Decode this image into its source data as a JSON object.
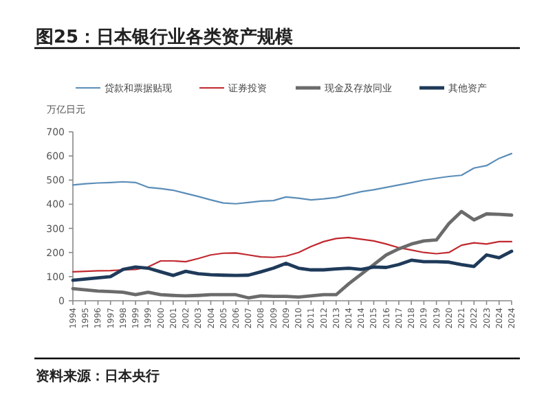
{
  "chart_data": {
    "type": "line",
    "title": "图25：日本银行业各类资产规模",
    "ylabel": "万亿日元",
    "categories": [
      "1994",
      "1995",
      "1996",
      "1997",
      "1998",
      "1999",
      "1999",
      "2000",
      "2001",
      "2002",
      "2003",
      "2004",
      "2005",
      "2006",
      "2007",
      "2008",
      "2009",
      "2009",
      "2010",
      "2011",
      "2012",
      "2013",
      "2014",
      "2014",
      "2015",
      "2016",
      "2017",
      "2018",
      "2019",
      "2019",
      "2020",
      "2021",
      "2022",
      "2023",
      "2024",
      "2024"
    ],
    "series": [
      {
        "name": "贷款和票据贴现",
        "color": "#5b8db8",
        "values": [
          480,
          485,
          488,
          490,
          493,
          490,
          470,
          465,
          458,
          445,
          432,
          418,
          405,
          402,
          407,
          413,
          415,
          430,
          425,
          418,
          422,
          428,
          440,
          452,
          460,
          470,
          480,
          490,
          500,
          508,
          515,
          520,
          550,
          560,
          590,
          610
        ]
      },
      {
        "name": "证券投资",
        "color": "#c0282e",
        "values": [
          120,
          122,
          124,
          125,
          128,
          130,
          140,
          165,
          165,
          162,
          175,
          190,
          197,
          198,
          190,
          182,
          180,
          185,
          200,
          225,
          245,
          258,
          262,
          255,
          248,
          235,
          220,
          210,
          200,
          195,
          200,
          230,
          240,
          235,
          245,
          245
        ]
      },
      {
        "name": "现金及存放同业",
        "color": "#6b6b6b",
        "values": [
          50,
          45,
          40,
          38,
          35,
          25,
          35,
          25,
          22,
          20,
          22,
          25,
          25,
          25,
          12,
          20,
          18,
          18,
          15,
          20,
          25,
          25,
          70,
          110,
          150,
          190,
          215,
          235,
          248,
          252,
          320,
          370,
          335,
          360,
          358,
          355
        ]
      },
      {
        "name": "其他资产",
        "color": "#1f3a5a",
        "values": [
          85,
          90,
          95,
          100,
          130,
          140,
          135,
          120,
          105,
          122,
          112,
          108,
          106,
          105,
          106,
          120,
          135,
          155,
          135,
          128,
          128,
          132,
          135,
          130,
          140,
          138,
          150,
          168,
          162,
          162,
          160,
          150,
          142,
          190,
          178,
          205
        ]
      }
    ],
    "ylim": [
      0,
      700
    ],
    "yticks": [
      0,
      100,
      200,
      300,
      400,
      500,
      600,
      700
    ],
    "grid": false,
    "legend": "top",
    "marker": "none",
    "line_style": "solid",
    "annotations": [
      "资料来源：日本央行"
    ]
  }
}
